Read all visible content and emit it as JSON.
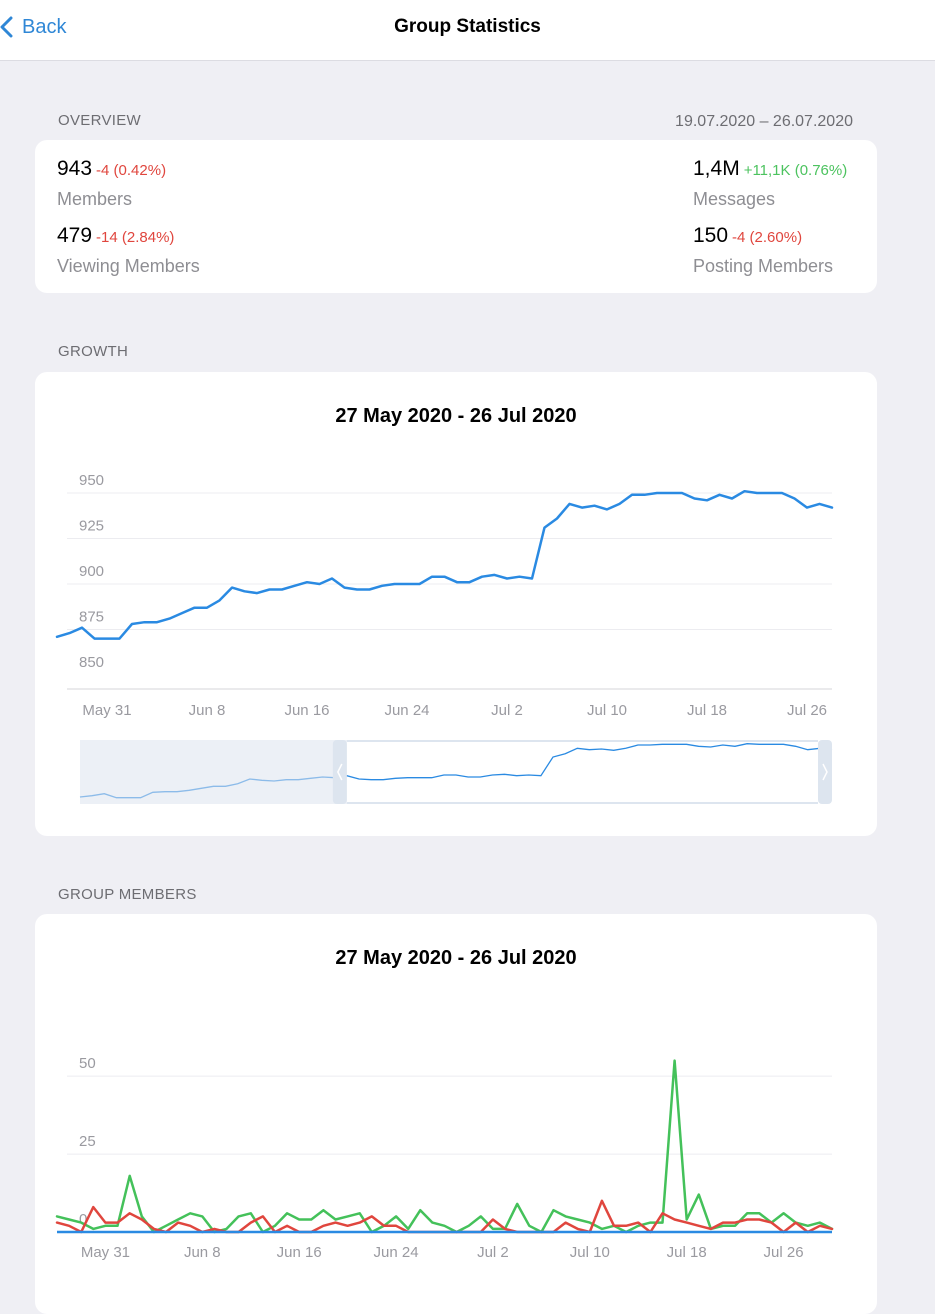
{
  "nav": {
    "back_label": "Back",
    "title": "Group Statistics"
  },
  "overview": {
    "section_label": "OVERVIEW",
    "date_range": "19.07.2020 – 26.07.2020",
    "members": {
      "value": "943",
      "delta": "-4 (0.42%)",
      "label": "Members"
    },
    "viewing": {
      "value": "479",
      "delta": "-14 (2.84%)",
      "label": "Viewing Members"
    },
    "messages": {
      "value": "1,4M",
      "delta": "+11,1K (0.76%)",
      "label": "Messages"
    },
    "posting": {
      "value": "150",
      "delta": "-4 (2.60%)",
      "label": "Posting Members"
    }
  },
  "growth": {
    "section_label": "GROWTH",
    "title": "27 May 2020 - 26 Jul 2020"
  },
  "group_members": {
    "section_label": "GROUP MEMBERS",
    "title": "27 May 2020 - 26 Jul 2020"
  },
  "colors": {
    "accent": "#2f87d6",
    "line_blue": "#2a8ae2",
    "joined_green": "#44c15a",
    "left_red": "#e0463e",
    "negative": "#e0463e",
    "positive": "#4cc35f"
  },
  "chart_data": [
    {
      "type": "line",
      "title": "27 May 2020 - 26 Jul 2020",
      "x_tick_labels": [
        "May 31",
        "Jun 8",
        "Jun 16",
        "Jun 24",
        "Jul 2",
        "Jul 10",
        "Jul 18",
        "Jul 26"
      ],
      "y_tick_labels": [
        "950",
        "925",
        "900",
        "875",
        "850"
      ],
      "ylim": [
        850,
        950
      ],
      "grid": true,
      "x_start_date": "2020-05-27",
      "series": [
        {
          "values": [
            871,
            873,
            876,
            870,
            870,
            870,
            878,
            879,
            879,
            881,
            884,
            887,
            887,
            891,
            898,
            896,
            895,
            897,
            897,
            899,
            901,
            900,
            903,
            898,
            897,
            897,
            899,
            900,
            900,
            900,
            904,
            904,
            901,
            901,
            904,
            905,
            903,
            904,
            903,
            931,
            936,
            944,
            942,
            943,
            941,
            944,
            949,
            949,
            950,
            950,
            950,
            947,
            946,
            949,
            947,
            951,
            950,
            950,
            950,
            947,
            942,
            944,
            942
          ]
        }
      ],
      "navigator": {
        "selected_range": [
          "2020-06-18",
          "2020-07-26"
        ]
      }
    },
    {
      "type": "line",
      "title": "27 May 2020 - 26 Jul 2020",
      "x_tick_labels": [
        "May 31",
        "Jun 8",
        "Jun 16",
        "Jun 24",
        "Jul 2",
        "Jul 10",
        "Jul 18",
        "Jul 26"
      ],
      "y_tick_labels": [
        "50",
        "25",
        "0"
      ],
      "ylim": [
        0,
        60
      ],
      "grid": true,
      "x_start_date": "2020-05-27",
      "series": [
        {
          "color": "#44c15a",
          "values": [
            5,
            4,
            3,
            1,
            2,
            2,
            18,
            5,
            0,
            2,
            4,
            6,
            5,
            0,
            1,
            5,
            6,
            0,
            2,
            6,
            4,
            4,
            7,
            4,
            5,
            6,
            0,
            2,
            5,
            1,
            7,
            3,
            2,
            0,
            2,
            5,
            1,
            1,
            9,
            2,
            0,
            7,
            5,
            4,
            3,
            1,
            2,
            0,
            2,
            3,
            3,
            55,
            4,
            12,
            1,
            2,
            2,
            6,
            6,
            3,
            6,
            3,
            2,
            3,
            1
          ]
        },
        {
          "color": "#e0463e",
          "values": [
            3,
            2,
            0,
            8,
            3,
            3,
            6,
            4,
            1,
            0,
            3,
            2,
            0,
            1,
            0,
            0,
            3,
            5,
            0,
            2,
            0,
            0,
            2,
            3,
            2,
            3,
            5,
            2,
            2,
            0,
            0,
            0,
            0,
            0,
            0,
            0,
            4,
            1,
            0,
            0,
            0,
            0,
            3,
            1,
            0,
            10,
            2,
            2,
            3,
            0,
            6,
            4,
            3,
            2,
            1,
            3,
            3,
            4,
            4,
            3,
            0,
            3,
            0,
            2,
            1
          ]
        }
      ]
    }
  ]
}
